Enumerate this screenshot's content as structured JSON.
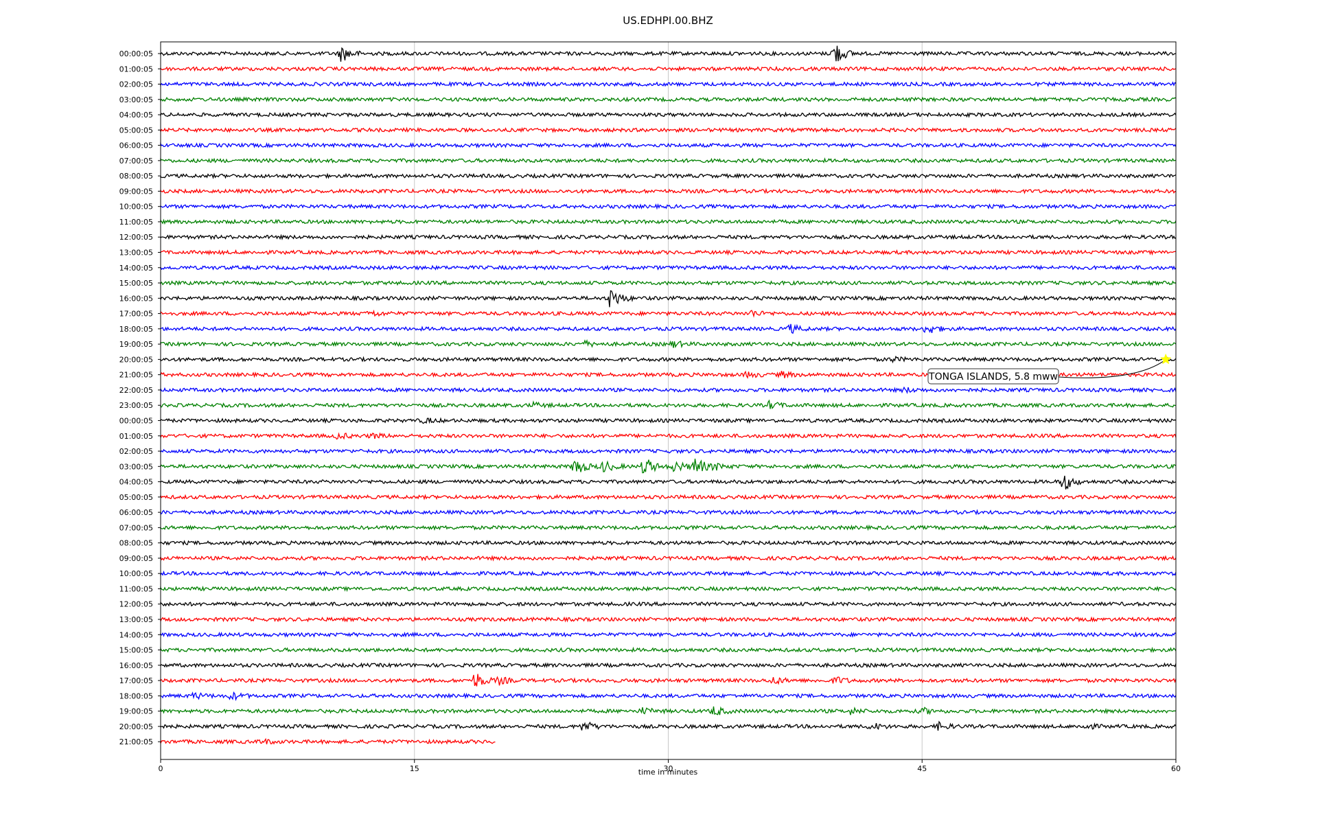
{
  "chart_data": {
    "type": "line",
    "title": "US.EDHPI.00.BHZ",
    "xlabel": "time in minutes",
    "ylabel": "",
    "xlim": [
      0,
      60
    ],
    "x_ticks": [
      0,
      15,
      30,
      45,
      60
    ],
    "grid": "vertical lines at x ticks",
    "line_minutes": 60,
    "trace_colors": [
      "#000000",
      "#ff0000",
      "#0000ff",
      "#008000"
    ],
    "rows": [
      {
        "label": "00:00:05",
        "events": [
          {
            "t": 10.7,
            "amp": 12
          },
          {
            "t": 39.8,
            "amp": 18
          }
        ]
      },
      {
        "label": "01:00:05",
        "events": []
      },
      {
        "label": "02:00:05",
        "events": []
      },
      {
        "label": "03:00:05",
        "events": []
      },
      {
        "label": "04:00:05",
        "events": []
      },
      {
        "label": "05:00:05",
        "events": []
      },
      {
        "label": "06:00:05",
        "events": []
      },
      {
        "label": "07:00:05",
        "events": []
      },
      {
        "label": "08:00:05",
        "events": []
      },
      {
        "label": "09:00:05",
        "events": []
      },
      {
        "label": "10:00:05",
        "events": []
      },
      {
        "label": "11:00:05",
        "events": []
      },
      {
        "label": "12:00:05",
        "events": []
      },
      {
        "label": "13:00:05",
        "events": []
      },
      {
        "label": "14:00:05",
        "events": []
      },
      {
        "label": "15:00:05",
        "events": []
      },
      {
        "label": "16:00:05",
        "events": [
          {
            "t": 26.6,
            "amp": 16
          }
        ]
      },
      {
        "label": "17:00:05",
        "events": [
          {
            "t": 12.4,
            "amp": 4
          },
          {
            "t": 34.9,
            "amp": 4
          }
        ]
      },
      {
        "label": "18:00:05",
        "events": [
          {
            "t": 37.2,
            "amp": 6
          },
          {
            "t": 45.3,
            "amp": 8
          }
        ]
      },
      {
        "label": "19:00:05",
        "events": [
          {
            "t": 25.0,
            "amp": 4
          },
          {
            "t": 30.3,
            "amp": 4
          }
        ]
      },
      {
        "label": "20:00:05",
        "events": [
          {
            "t": 43.2,
            "amp": 3
          }
        ]
      },
      {
        "label": "21:00:05",
        "events": [
          {
            "t": 34.7,
            "amp": 4
          },
          {
            "t": 36.7,
            "amp": 4
          }
        ]
      },
      {
        "label": "22:00:05",
        "events": [
          {
            "t": 44.0,
            "amp": 3
          }
        ]
      },
      {
        "label": "23:00:05",
        "events": [
          {
            "t": 22.0,
            "amp": 3
          },
          {
            "t": 36.0,
            "amp": 5
          }
        ]
      },
      {
        "label": "00:00:05",
        "events": [
          {
            "t": 15.6,
            "amp": 3
          }
        ]
      },
      {
        "label": "01:00:05",
        "events": [
          {
            "t": 10.5,
            "amp": 4
          },
          {
            "t": 12.5,
            "amp": 3
          }
        ]
      },
      {
        "label": "02:00:05",
        "events": []
      },
      {
        "label": "03:00:05",
        "events": [
          {
            "t": 24.5,
            "amp": 14
          },
          {
            "t": 26.2,
            "amp": 8
          },
          {
            "t": 28.6,
            "amp": 14
          },
          {
            "t": 30.4,
            "amp": 8
          },
          {
            "t": 31.6,
            "amp": 14
          },
          {
            "t": 32.7,
            "amp": 5
          }
        ]
      },
      {
        "label": "04:00:05",
        "events": [
          {
            "t": 53.3,
            "amp": 14
          }
        ]
      },
      {
        "label": "05:00:05",
        "events": []
      },
      {
        "label": "06:00:05",
        "events": []
      },
      {
        "label": "07:00:05",
        "events": []
      },
      {
        "label": "08:00:05",
        "events": []
      },
      {
        "label": "09:00:05",
        "events": []
      },
      {
        "label": "10:00:05",
        "events": []
      },
      {
        "label": "11:00:05",
        "events": []
      },
      {
        "label": "12:00:05",
        "events": []
      },
      {
        "label": "13:00:05",
        "events": []
      },
      {
        "label": "14:00:05",
        "events": []
      },
      {
        "label": "15:00:05",
        "events": []
      },
      {
        "label": "16:00:05",
        "events": []
      },
      {
        "label": "17:00:05",
        "events": [
          {
            "t": 18.6,
            "amp": 12
          },
          {
            "t": 20.0,
            "amp": 5
          },
          {
            "t": 36.2,
            "amp": 5
          },
          {
            "t": 39.9,
            "amp": 5
          }
        ]
      },
      {
        "label": "18:00:05",
        "events": [
          {
            "t": 2.0,
            "amp": 4
          },
          {
            "t": 4.2,
            "amp": 5
          }
        ]
      },
      {
        "label": "19:00:05",
        "events": [
          {
            "t": 28.5,
            "amp": 4
          },
          {
            "t": 32.7,
            "amp": 7
          },
          {
            "t": 40.8,
            "amp": 4
          },
          {
            "t": 45.0,
            "amp": 4
          }
        ]
      },
      {
        "label": "20:00:05",
        "events": [
          {
            "t": 25.0,
            "amp": 8
          },
          {
            "t": 42.0,
            "amp": 5
          },
          {
            "t": 46.0,
            "amp": 5
          },
          {
            "t": 54.6,
            "amp": 4
          }
        ]
      },
      {
        "label": "21:00:05",
        "events": [
          {
            "t": 6.0,
            "amp": 3
          }
        ]
      }
    ],
    "last_row_end_minute": 19.8,
    "annotation": {
      "text": "TONGA ISLANDS, 5.8 mww",
      "row": 20,
      "minute": 59.4,
      "marker": "star",
      "marker_color": "#ffff00"
    }
  }
}
